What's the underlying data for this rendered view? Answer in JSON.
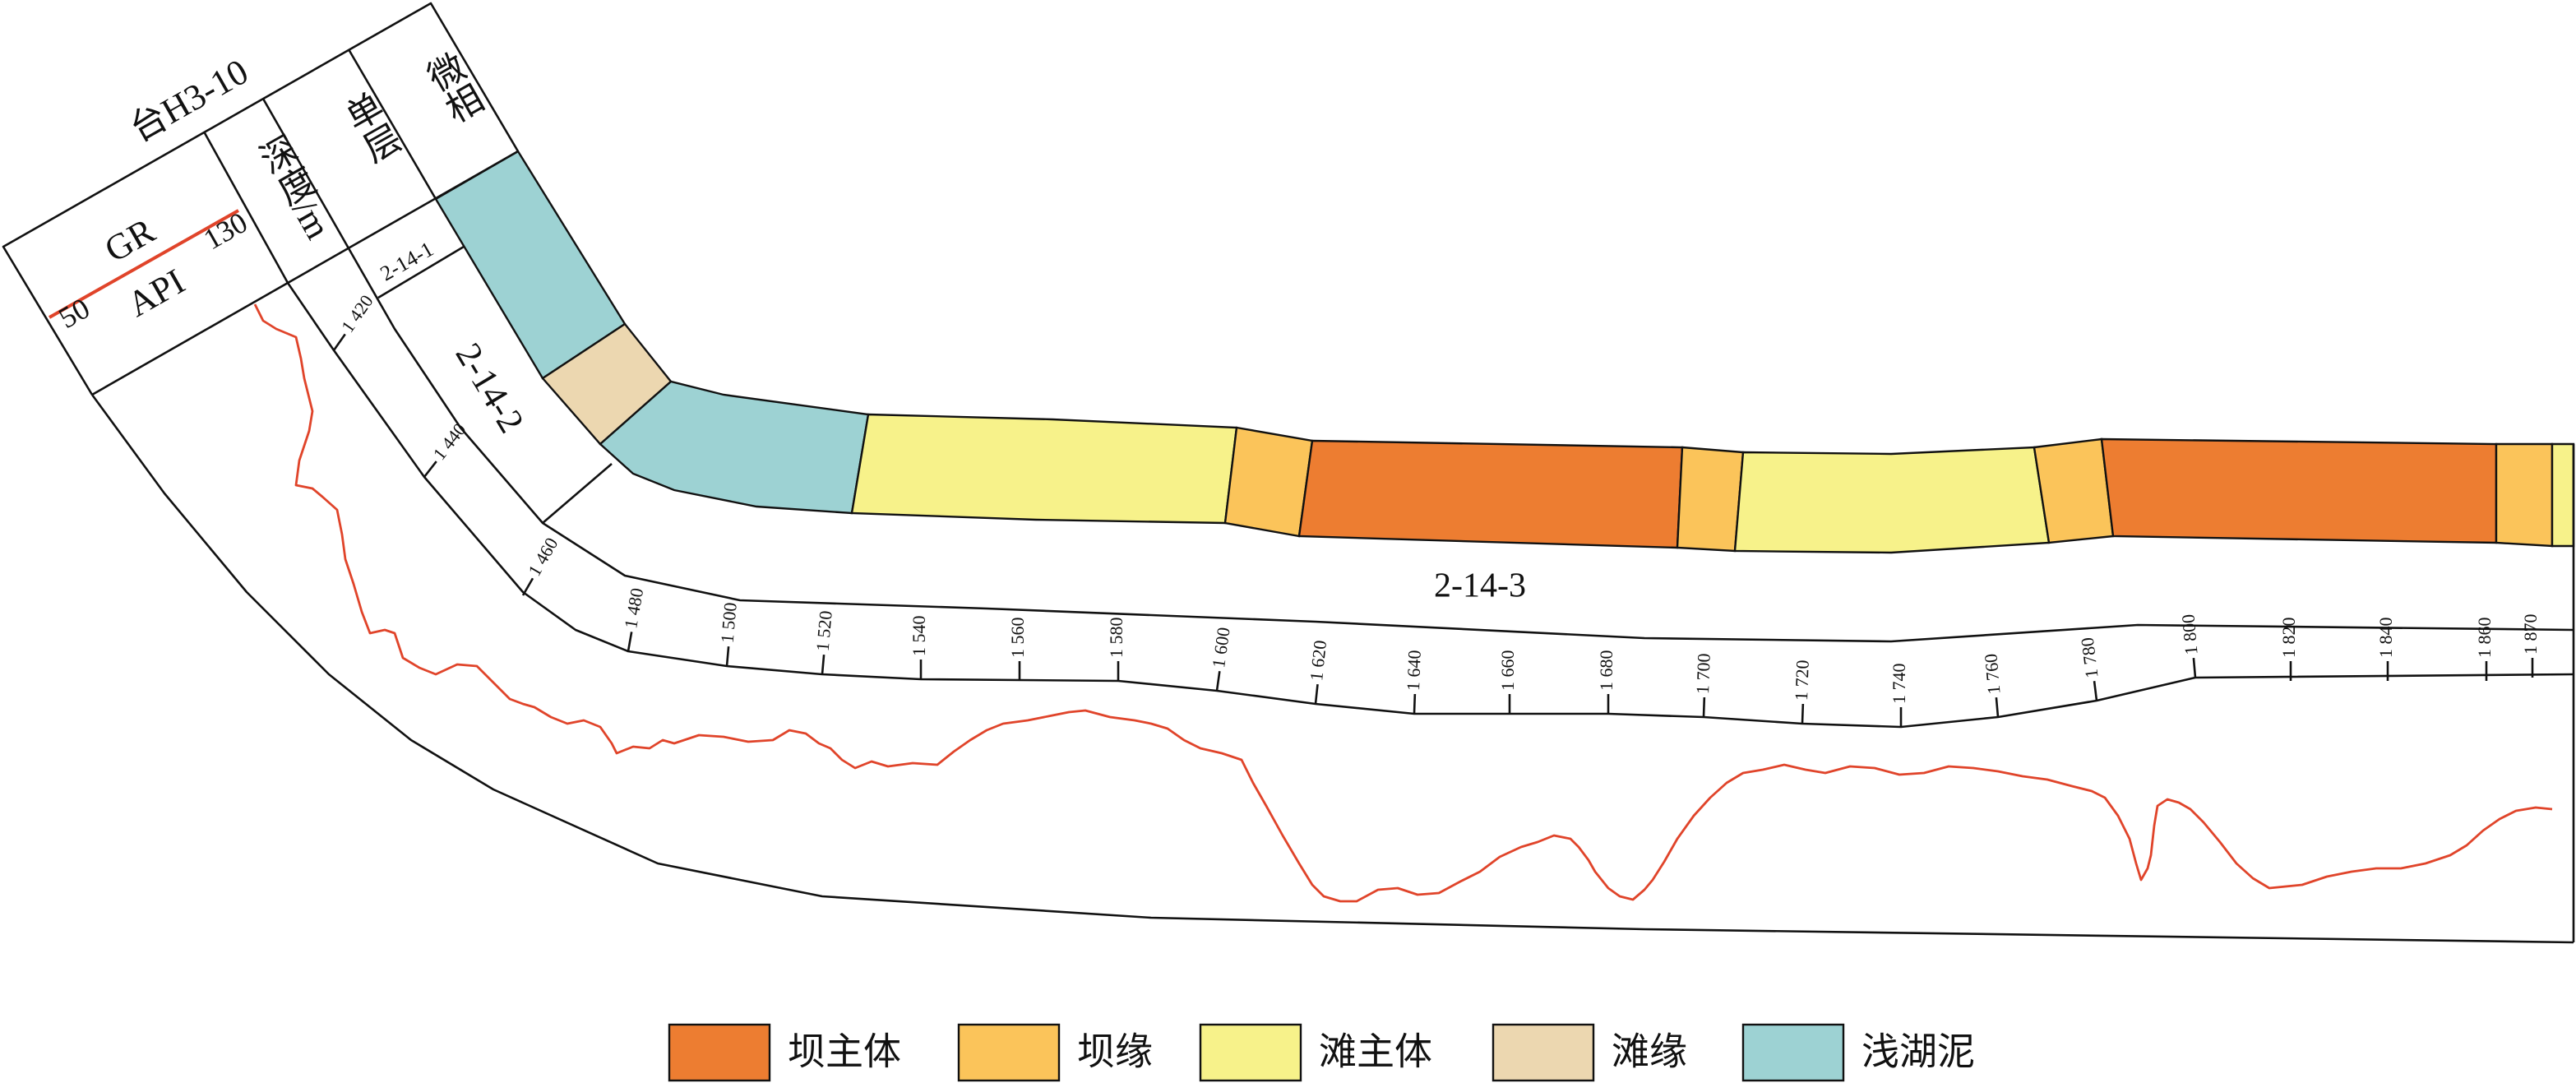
{
  "header": {
    "well": "台H3-10",
    "gr": "GR",
    "api": "API",
    "gr_min": 50,
    "gr_max": 130,
    "depth": "深度/m",
    "layer": "单层",
    "facies": "微相"
  },
  "layers": [
    "2-14-1",
    "2-14-2",
    "2-14-3"
  ],
  "depth_ticks": [
    "1 420",
    "1 440",
    "1 460",
    "1 480",
    "1 500",
    "1 520",
    "1 540",
    "1 560",
    "1 580",
    "1 600",
    "1 620",
    "1 640",
    "1 660",
    "1 680",
    "1 700",
    "1 720",
    "1 740",
    "1 760",
    "1 780",
    "1 800",
    "1 820",
    "1 840",
    "1 860",
    "1 870"
  ],
  "legend": [
    {
      "label": "坝主体",
      "color": "#ed7d31"
    },
    {
      "label": "坝缘",
      "color": "#fbc45a"
    },
    {
      "label": "滩主体",
      "color": "#f7f28a"
    },
    {
      "label": "滩缘",
      "color": "#ecd7b0"
    },
    {
      "label": "浅湖泥",
      "color": "#9dd2d3"
    }
  ]
}
